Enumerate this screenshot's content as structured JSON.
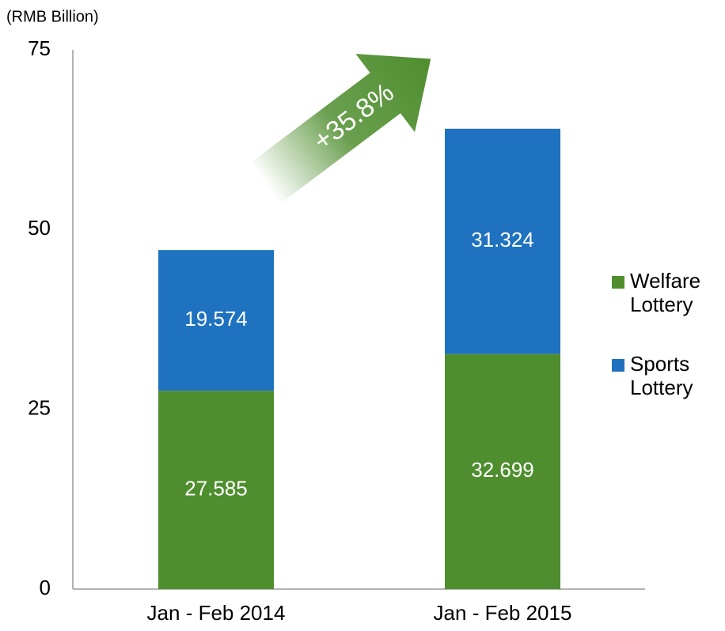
{
  "chart_data": {
    "type": "stacked_bar",
    "y_axis_label": "(RMB Billion)",
    "annotation": "+35.8%",
    "categories": [
      "Jan - Feb 2014",
      "Jan - Feb 2015"
    ],
    "series": [
      {
        "name": "Welfare Lottery",
        "color": "#4f8e2f",
        "values": [
          27.585,
          32.699
        ]
      },
      {
        "name": "Sports Lottery",
        "color": "#1f72bf",
        "values": [
          19.574,
          31.324
        ]
      }
    ],
    "ylim": [
      0,
      75
    ],
    "yticks": [
      0,
      25,
      50,
      75
    ],
    "grid": false,
    "legend": "right"
  }
}
